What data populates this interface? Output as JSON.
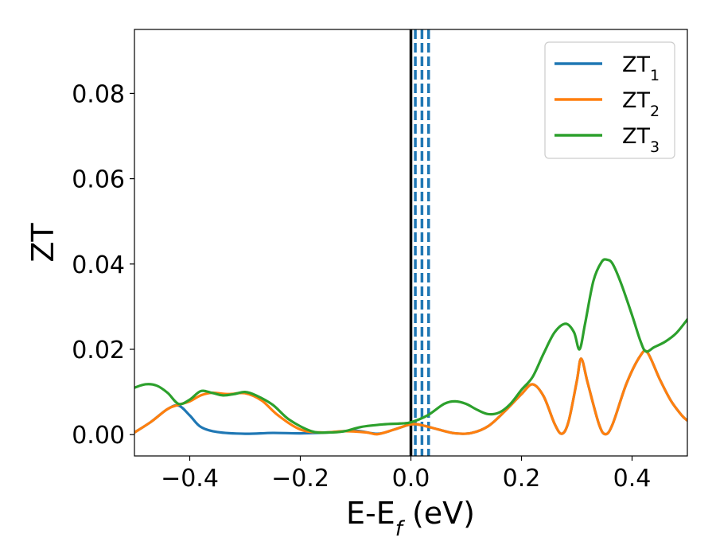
{
  "chart_data": {
    "type": "line",
    "xlabel": "E-E",
    "xlabel_sub": "f",
    "xlabel_unit": " (eV)",
    "ylabel": "ZT",
    "xlim": [
      -0.5,
      0.5
    ],
    "ylim": [
      -0.005,
      0.095
    ],
    "xticks": [
      -0.4,
      -0.2,
      0.0,
      0.2,
      0.4
    ],
    "xtick_labels": [
      "−0.4",
      "−0.2",
      "0.0",
      "0.2",
      "0.4"
    ],
    "yticks": [
      0.0,
      0.02,
      0.04,
      0.06,
      0.08
    ],
    "ytick_labels": [
      "0.00",
      "0.02",
      "0.04",
      "0.06",
      "0.08"
    ],
    "grid": false,
    "legend_position": "top-right",
    "vertical_lines": [
      {
        "x": 0.0,
        "style": "solid",
        "color": "#000000"
      },
      {
        "x": 0.008,
        "style": "dashed",
        "color": "#1f77b4"
      },
      {
        "x": 0.02,
        "style": "dashed",
        "color": "#1f77b4"
      },
      {
        "x": 0.032,
        "style": "dashed",
        "color": "#1f77b4"
      }
    ],
    "series": [
      {
        "name": "ZT",
        "name_sub": "1",
        "color": "#1f77b4",
        "points": [
          [
            -0.5,
            0.0005
          ],
          [
            -0.47,
            0.003
          ],
          [
            -0.44,
            0.006
          ],
          [
            -0.42,
            0.0068
          ],
          [
            -0.4,
            0.0045
          ],
          [
            -0.38,
            0.0018
          ],
          [
            -0.35,
            0.0006
          ],
          [
            -0.3,
            0.0002
          ],
          [
            -0.25,
            0.0004
          ],
          [
            -0.2,
            0.0003
          ],
          [
            -0.15,
            0.0005
          ],
          [
            -0.1,
            0.0009
          ],
          [
            -0.06,
            0.0002
          ],
          [
            -0.03,
            0.0012
          ],
          [
            0.0,
            0.0024
          ],
          [
            0.02,
            0.0022
          ],
          [
            0.05,
            0.0012
          ],
          [
            0.08,
            0.0003
          ],
          [
            0.11,
            0.0004
          ],
          [
            0.14,
            0.002
          ],
          [
            0.17,
            0.0055
          ],
          [
            0.2,
            0.0095
          ],
          [
            0.22,
            0.0118
          ],
          [
            0.24,
            0.009
          ],
          [
            0.26,
            0.0025
          ],
          [
            0.273,
            0.0002
          ],
          [
            0.285,
            0.003
          ],
          [
            0.3,
            0.0125
          ],
          [
            0.308,
            0.0178
          ],
          [
            0.32,
            0.012
          ],
          [
            0.34,
            0.0025
          ],
          [
            0.352,
            0.0001
          ],
          [
            0.365,
            0.0025
          ],
          [
            0.39,
            0.012
          ],
          [
            0.415,
            0.0185
          ],
          [
            0.428,
            0.0192
          ],
          [
            0.45,
            0.013
          ],
          [
            0.47,
            0.008
          ],
          [
            0.49,
            0.0045
          ],
          [
            0.5,
            0.0033
          ]
        ]
      },
      {
        "name": "ZT",
        "name_sub": "2",
        "color": "#ff7f0e",
        "points": [
          [
            -0.5,
            0.0005
          ],
          [
            -0.47,
            0.003
          ],
          [
            -0.44,
            0.006
          ],
          [
            -0.42,
            0.007
          ],
          [
            -0.4,
            0.0078
          ],
          [
            -0.38,
            0.0092
          ],
          [
            -0.36,
            0.0098
          ],
          [
            -0.33,
            0.0095
          ],
          [
            -0.3,
            0.0097
          ],
          [
            -0.27,
            0.008
          ],
          [
            -0.24,
            0.0045
          ],
          [
            -0.2,
            0.0012
          ],
          [
            -0.16,
            0.0005
          ],
          [
            -0.12,
            0.0008
          ],
          [
            -0.08,
            0.0005
          ],
          [
            -0.06,
            0.0001
          ],
          [
            -0.03,
            0.0012
          ],
          [
            0.0,
            0.0024
          ],
          [
            0.02,
            0.0022
          ],
          [
            0.05,
            0.0012
          ],
          [
            0.08,
            0.0003
          ],
          [
            0.11,
            0.0004
          ],
          [
            0.14,
            0.002
          ],
          [
            0.17,
            0.0055
          ],
          [
            0.2,
            0.0095
          ],
          [
            0.22,
            0.0118
          ],
          [
            0.24,
            0.009
          ],
          [
            0.26,
            0.0025
          ],
          [
            0.273,
            0.0002
          ],
          [
            0.285,
            0.003
          ],
          [
            0.3,
            0.0125
          ],
          [
            0.308,
            0.0178
          ],
          [
            0.32,
            0.012
          ],
          [
            0.34,
            0.0025
          ],
          [
            0.352,
            0.0001
          ],
          [
            0.365,
            0.0025
          ],
          [
            0.39,
            0.012
          ],
          [
            0.415,
            0.0185
          ],
          [
            0.428,
            0.0192
          ],
          [
            0.45,
            0.013
          ],
          [
            0.47,
            0.008
          ],
          [
            0.49,
            0.0045
          ],
          [
            0.5,
            0.0033
          ]
        ]
      },
      {
        "name": "ZT",
        "name_sub": "3",
        "color": "#2ca02c",
        "points": [
          [
            -0.5,
            0.011
          ],
          [
            -0.48,
            0.0118
          ],
          [
            -0.46,
            0.0115
          ],
          [
            -0.44,
            0.0098
          ],
          [
            -0.42,
            0.0072
          ],
          [
            -0.4,
            0.0082
          ],
          [
            -0.38,
            0.0102
          ],
          [
            -0.36,
            0.0098
          ],
          [
            -0.34,
            0.0092
          ],
          [
            -0.32,
            0.0095
          ],
          [
            -0.3,
            0.01
          ],
          [
            -0.28,
            0.0092
          ],
          [
            -0.25,
            0.007
          ],
          [
            -0.22,
            0.0035
          ],
          [
            -0.18,
            0.0008
          ],
          [
            -0.15,
            0.0005
          ],
          [
            -0.12,
            0.0008
          ],
          [
            -0.09,
            0.0018
          ],
          [
            -0.05,
            0.0024
          ],
          [
            -0.02,
            0.0026
          ],
          [
            0.0,
            0.0029
          ],
          [
            0.03,
            0.0045
          ],
          [
            0.06,
            0.0072
          ],
          [
            0.08,
            0.0078
          ],
          [
            0.1,
            0.0072
          ],
          [
            0.12,
            0.0058
          ],
          [
            0.14,
            0.0048
          ],
          [
            0.16,
            0.0052
          ],
          [
            0.18,
            0.0072
          ],
          [
            0.2,
            0.0105
          ],
          [
            0.22,
            0.0135
          ],
          [
            0.24,
            0.019
          ],
          [
            0.26,
            0.024
          ],
          [
            0.28,
            0.026
          ],
          [
            0.295,
            0.024
          ],
          [
            0.305,
            0.02
          ],
          [
            0.315,
            0.026
          ],
          [
            0.33,
            0.036
          ],
          [
            0.345,
            0.0405
          ],
          [
            0.355,
            0.041
          ],
          [
            0.365,
            0.04
          ],
          [
            0.38,
            0.0355
          ],
          [
            0.4,
            0.028
          ],
          [
            0.415,
            0.022
          ],
          [
            0.425,
            0.0195
          ],
          [
            0.44,
            0.0205
          ],
          [
            0.46,
            0.0218
          ],
          [
            0.48,
            0.0238
          ],
          [
            0.5,
            0.027
          ]
        ]
      }
    ]
  }
}
